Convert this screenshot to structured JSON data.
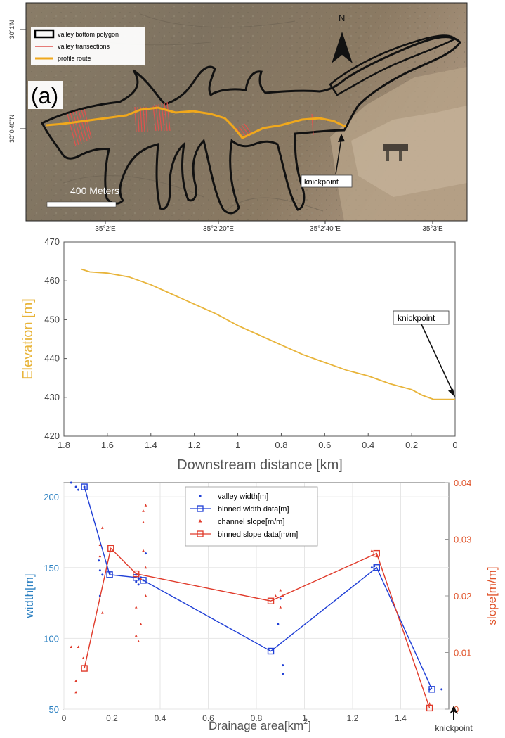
{
  "map": {
    "panel_label": "(a)",
    "lat_labels": [
      "30°1'N",
      "30°0'40\"N"
    ],
    "lon_labels": [
      "35°2'E",
      "35°2'20\"E",
      "35°2'40\"E",
      "35°3'E"
    ],
    "north_label": "N",
    "scale_label": "400 Meters",
    "knickpoint_label": "knickpoint",
    "legend": [
      {
        "label": "valley bottom polygon",
        "color": "#000000"
      },
      {
        "label": "valley transections",
        "color": "#e0534e"
      },
      {
        "label": "profile route",
        "color": "#f0a81c"
      }
    ]
  },
  "profile": {
    "ylabel": "Elevation [m]",
    "xlabel": "Downstream distance [km]",
    "annotation": "knickpoint",
    "line_color": "#e8b43a"
  },
  "scatter": {
    "ylabel_left": "width[m]",
    "ylabel_right": "slope[m/m]",
    "xlabel_main": "Drainage area[km",
    "xlabel_sup": "2",
    "xlabel_end": "]",
    "knickpoint_label": "knickpoint",
    "legend": [
      {
        "label": "valley width[m]",
        "color": "#1f3fd6"
      },
      {
        "label": "binned width data[m]",
        "color": "#1f3fd6"
      },
      {
        "label": "channel slope[m/m]",
        "color": "#e03a2a"
      },
      {
        "label": "binned slope data[m/m]",
        "color": "#e03a2a"
      }
    ],
    "left_color": "#2a7fc1",
    "right_color": "#e0532a"
  },
  "chart_data": [
    {
      "type": "line",
      "xlabel": "Downstream distance [km]",
      "ylabel": "Elevation [m]",
      "xlim": [
        1.8,
        0
      ],
      "ylim": [
        420,
        470
      ],
      "x_reversed": true,
      "xticks": [
        "1.8",
        "1.6",
        "1.4",
        "1.2",
        "1",
        "0.8",
        "0.6",
        "0.4",
        "0.2",
        "0"
      ],
      "yticks": [
        "420",
        "430",
        "440",
        "450",
        "460",
        "470"
      ],
      "series": [
        {
          "x": [
            1.72,
            1.68,
            1.6,
            1.5,
            1.4,
            1.3,
            1.2,
            1.1,
            1.0,
            0.9,
            0.8,
            0.7,
            0.6,
            0.5,
            0.4,
            0.3,
            0.2,
            0.15,
            0.1,
            0.05,
            0.0
          ],
          "y": [
            463,
            462.3,
            462,
            461,
            459,
            456.5,
            454,
            451.5,
            448.5,
            446,
            443.5,
            441,
            439,
            437,
            435.5,
            433.5,
            432,
            430.5,
            429.5,
            429.5,
            429.5
          ]
        }
      ],
      "annotations": [
        {
          "text": "knickpoint",
          "x": 0.0,
          "y": 429.5
        }
      ],
      "grid": false
    },
    {
      "type": "scatter",
      "xlabel": "Drainage area[km2]",
      "ylabel": "width[m]",
      "ylabel_right": "slope[m/m]",
      "xlim": [
        0,
        1.6
      ],
      "ylim": [
        50,
        210
      ],
      "ylim_right": [
        0,
        0.04
      ],
      "xticks": [
        "0",
        "0.2",
        "0.4",
        "0.6",
        "0.8",
        "1",
        "1.2",
        "1.4"
      ],
      "yticks": [
        "50",
        "100",
        "150",
        "200"
      ],
      "yticks_right": [
        "0",
        "0.01",
        "0.02",
        "0.03",
        "0.04"
      ],
      "grid": true,
      "legend_position": "top-center",
      "series": [
        {
          "name": "valley width[m]",
          "axis": "left",
          "marker": "dot",
          "x": [
            0.03,
            0.05,
            0.06,
            0.085,
            0.145,
            0.15,
            0.15,
            0.16,
            0.19,
            0.3,
            0.3,
            0.31,
            0.32,
            0.33,
            0.34,
            0.89,
            0.9,
            0.91,
            0.91,
            1.28,
            1.29,
            1.52,
            1.57
          ],
          "y": [
            210,
            207,
            205,
            207,
            155,
            148,
            130,
            145,
            146,
            145,
            140,
            138,
            143,
            141,
            160,
            110,
            128,
            81,
            75,
            150,
            151,
            64,
            64
          ]
        },
        {
          "name": "binned width data[m]",
          "axis": "left",
          "marker": "square",
          "x": [
            0.085,
            0.19,
            0.3,
            0.33,
            0.86,
            1.3,
            1.53
          ],
          "y": [
            207,
            145,
            143,
            141,
            91,
            150,
            64
          ]
        },
        {
          "name": "channel slope[m/m]",
          "axis": "right",
          "marker": "triangle",
          "x": [
            0.03,
            0.05,
            0.05,
            0.06,
            0.08,
            0.15,
            0.15,
            0.16,
            0.16,
            0.3,
            0.3,
            0.31,
            0.32,
            0.32,
            0.33,
            0.33,
            0.33,
            0.34,
            0.34,
            0.34,
            0.88,
            0.9,
            0.9,
            0.91,
            1.28,
            1.3,
            1.52
          ],
          "y": [
            0.011,
            0.005,
            0.003,
            0.011,
            0.009,
            0.029,
            0.027,
            0.032,
            0.017,
            0.013,
            0.018,
            0.012,
            0.023,
            0.015,
            0.028,
            0.033,
            0.035,
            0.025,
            0.02,
            0.036,
            0.02,
            0.021,
            0.018,
            0.02,
            0.028,
            0.027,
            0.001
          ]
        },
        {
          "name": "binned slope data[m/m]",
          "axis": "right",
          "marker": "square",
          "x": [
            0.085,
            0.195,
            0.3,
            0.86,
            1.3,
            1.52
          ],
          "y": [
            0.0072,
            0.0284,
            0.0239,
            0.0191,
            0.0275,
            0.0002
          ]
        }
      ],
      "annotations": [
        {
          "text": "knickpoint",
          "x": 1.6,
          "y": 50
        }
      ]
    }
  ]
}
